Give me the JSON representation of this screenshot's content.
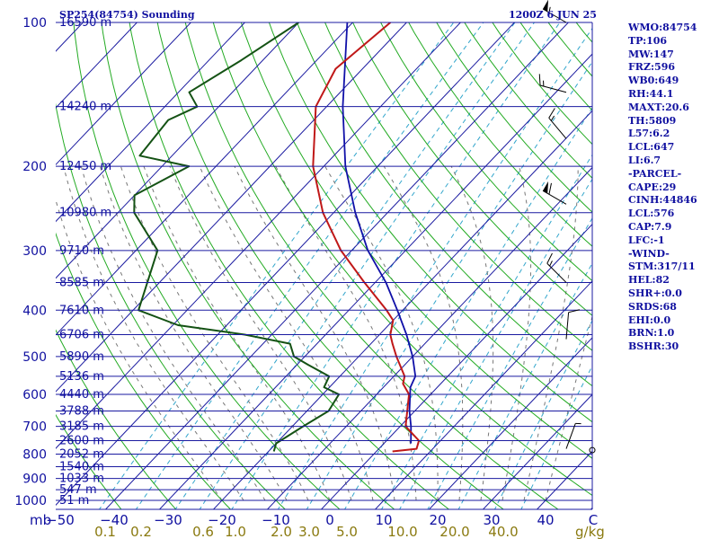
{
  "header": {
    "station": "SP254(84754) Sounding",
    "time": "1200Z  6 JUN 25"
  },
  "indices": [
    "WMO:84754",
    "TP:106",
    "MW:147",
    "FRZ:596",
    "WB0:649",
    "RH:44.1",
    "MAXT:20.6",
    "TH:5809",
    "L57:6.2",
    "LCL:647",
    "LI:6.7",
    "-PARCEL-",
    "CAPE:29",
    "CINH:44846",
    "LCL:576",
    "CAP:7.9",
    "LFC:-1",
    "-WIND-",
    "STM:317/11",
    "HEL:82",
    "SHR+:0.0",
    "SRDS:68",
    "EHI:0.0",
    "BRN:1.0",
    "BSHR:30"
  ],
  "colors": {
    "isobar": "#1a1aa0",
    "isotherm": "#1a1aa0",
    "dry_adiabat": "#22aa22",
    "moist_adiabat": "#777777",
    "mixing_ratio": "#33a6cc",
    "temperature": "#c01818",
    "dewpoint": "#145214",
    "parcel": "#1010a8",
    "wind": "#000000"
  },
  "chart_data": {
    "type": "skew-t log-p sounding",
    "pressure_levels": [
      {
        "p": 100,
        "label": "100",
        "height": "16590 m"
      },
      {
        "p": 150,
        "label": "",
        "height": "14240 m"
      },
      {
        "p": 200,
        "label": "200",
        "height": "12450 m"
      },
      {
        "p": 250,
        "label": "",
        "height": "10980 m"
      },
      {
        "p": 300,
        "label": "300",
        "height": "9710 m"
      },
      {
        "p": 350,
        "label": "",
        "height": "8585 m"
      },
      {
        "p": 400,
        "label": "400",
        "height": "7610 m"
      },
      {
        "p": 450,
        "label": "",
        "height": "6706 m"
      },
      {
        "p": 500,
        "label": "500",
        "height": "5890 m"
      },
      {
        "p": 550,
        "label": "",
        "height": "5136 m"
      },
      {
        "p": 600,
        "label": "600",
        "height": "4440 m"
      },
      {
        "p": 650,
        "label": "",
        "height": "3788 m"
      },
      {
        "p": 700,
        "label": "700",
        "height": "3185 m"
      },
      {
        "p": 750,
        "label": "",
        "height": "2600 m"
      },
      {
        "p": 800,
        "label": "800",
        "height": "2052 m"
      },
      {
        "p": 850,
        "label": "",
        "height": "1540 m"
      },
      {
        "p": 900,
        "label": "900",
        "height": "1033 m"
      },
      {
        "p": 950,
        "label": "",
        "height": "547 m"
      },
      {
        "p": 1000,
        "label": "1000",
        "height": "51 m"
      }
    ],
    "pressure_unit_label": "mb",
    "temperature_ticks": [
      "-50",
      "-40",
      "-30",
      "-20",
      "-10",
      "0",
      "10",
      "20",
      "30",
      "40",
      "C"
    ],
    "mixing_ratio_ticks": [
      "0.1",
      "0.2",
      "0.6",
      "1.0",
      "2.0",
      "3.0",
      "5.0",
      "10.0",
      "20.0",
      "40.0"
    ],
    "mixing_ratio_unit": "g/kg",
    "temperature_profile": [
      [
        100,
        -73
      ],
      [
        125,
        -75
      ],
      [
        150,
        -72
      ],
      [
        200,
        -62
      ],
      [
        250,
        -52
      ],
      [
        300,
        -42
      ],
      [
        350,
        -32
      ],
      [
        400,
        -23
      ],
      [
        420,
        -20
      ],
      [
        450,
        -18
      ],
      [
        470,
        -16
      ],
      [
        500,
        -13
      ],
      [
        550,
        -8
      ],
      [
        570,
        -7
      ],
      [
        600,
        -4
      ],
      [
        700,
        1
      ],
      [
        750,
        6
      ],
      [
        780,
        7
      ],
      [
        790,
        3
      ]
    ],
    "dewpoint_profile": [
      [
        100,
        -90
      ],
      [
        120,
        -94
      ],
      [
        140,
        -98
      ],
      [
        150,
        -94
      ],
      [
        160,
        -97
      ],
      [
        190,
        -96
      ],
      [
        200,
        -85
      ],
      [
        230,
        -90
      ],
      [
        250,
        -87
      ],
      [
        300,
        -76
      ],
      [
        400,
        -69
      ],
      [
        430,
        -59
      ],
      [
        450,
        -45
      ],
      [
        470,
        -35
      ],
      [
        500,
        -32
      ],
      [
        520,
        -28
      ],
      [
        550,
        -22
      ],
      [
        580,
        -21
      ],
      [
        600,
        -17
      ],
      [
        650,
        -16
      ],
      [
        700,
        -18
      ],
      [
        760,
        -20
      ],
      [
        790,
        -19
      ]
    ],
    "parcel_profile": [
      [
        100,
        -81
      ],
      [
        150,
        -67
      ],
      [
        200,
        -56
      ],
      [
        250,
        -46
      ],
      [
        300,
        -37
      ],
      [
        350,
        -28
      ],
      [
        400,
        -21
      ],
      [
        450,
        -15
      ],
      [
        500,
        -10
      ],
      [
        550,
        -6
      ],
      [
        580,
        -5
      ],
      [
        650,
        -1
      ],
      [
        700,
        2
      ],
      [
        760,
        5
      ]
    ],
    "wind_barbs": [
      {
        "p": 100,
        "dir": 300,
        "speed": 55
      },
      {
        "p": 140,
        "dir": 285,
        "speed": 15
      },
      {
        "p": 175,
        "dir": 320,
        "speed": 15
      },
      {
        "p": 240,
        "dir": 300,
        "speed": 60
      },
      {
        "p": 350,
        "dir": 315,
        "speed": 15
      },
      {
        "p": 460,
        "dir": 5,
        "speed": 10
      },
      {
        "p": 780,
        "dir": 20,
        "speed": 5
      }
    ]
  }
}
